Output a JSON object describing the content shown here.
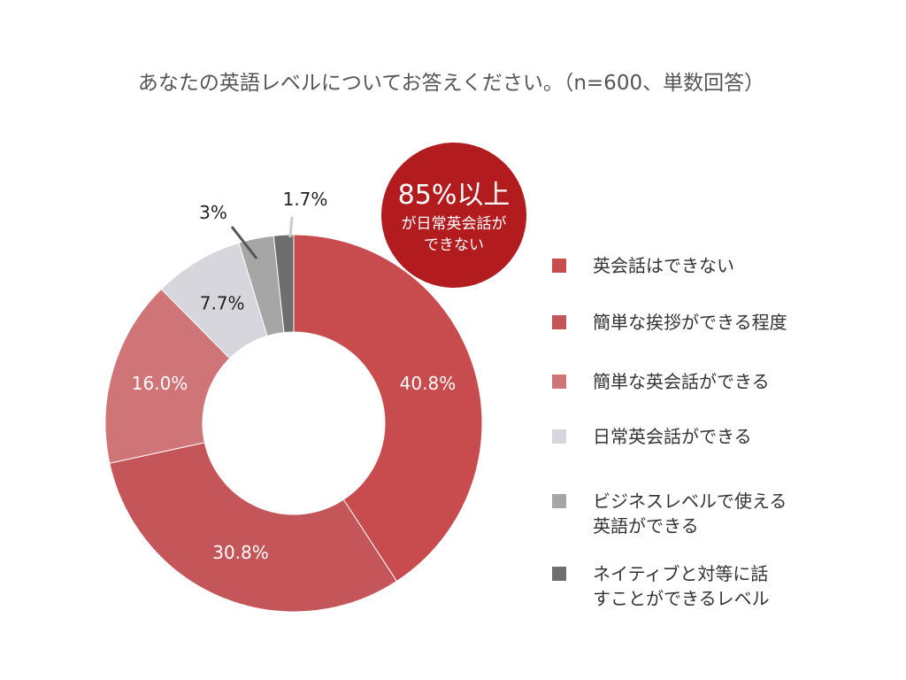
{
  "chart_data": {
    "type": "pie",
    "title": "あなたの英語レベルについてお答えください。（n=600、単数回答）",
    "categories": [
      "英会話はできない",
      "簡単な挨拶ができる程度",
      "簡単な英会話ができる",
      "日常英会話ができる",
      "ビジネスレベルで使える英語ができる",
      "ネイティブと対等に話すことができるレベル"
    ],
    "legend_lines": [
      [
        "英会話はできない"
      ],
      [
        "簡単な挨拶ができる程度"
      ],
      [
        "簡単な英会話ができる"
      ],
      [
        "日常英会話ができる"
      ],
      [
        "ビジネスレベルで使える",
        "英語ができる"
      ],
      [
        "ネイティブと対等に話",
        "すことができるレベル"
      ]
    ],
    "values": [
      40.8,
      30.8,
      16.0,
      7.7,
      3,
      1.7
    ],
    "value_labels": [
      "40.8%",
      "30.8%",
      "16.0%",
      "7.7%",
      "3%",
      "1.7%"
    ],
    "colors": [
      "#c84b4e",
      "#c45558",
      "#cf7477",
      "#d7d6dc",
      "#a6a6a6",
      "#6e6e6e"
    ],
    "donut": true,
    "legend_position": "right"
  },
  "callout": {
    "headline": "85%以上",
    "line1": "が日常英会話が",
    "line2": "できない",
    "color": "#b21c1e"
  }
}
